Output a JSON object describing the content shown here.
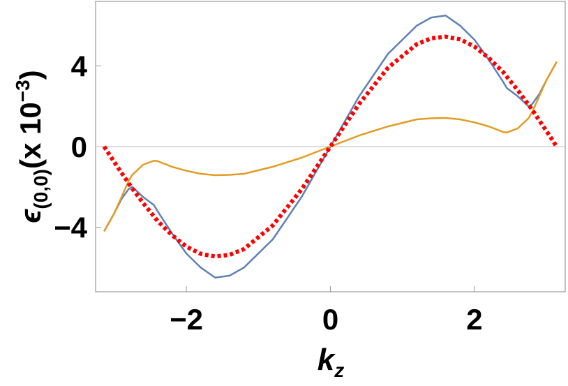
{
  "chart_data": {
    "type": "line",
    "x_label": [
      "k",
      "z"
    ],
    "y_label": [
      "ϵ",
      "(0,0)",
      "(x 10",
      "−3",
      ")"
    ],
    "x": [
      -3.1416,
      -3.0,
      -2.9,
      -2.8,
      -2.75,
      -2.6,
      -2.45,
      -2.4,
      -2.2,
      -2.0,
      -1.8,
      -1.6,
      -1.4,
      -1.2,
      -0.8,
      -0.4,
      0,
      0.4,
      0.8,
      1.2,
      1.4,
      1.6,
      1.8,
      2.0,
      2.2,
      2.4,
      2.45,
      2.6,
      2.75,
      2.8,
      2.9,
      3.0,
      3.1416
    ],
    "series": [
      {
        "color": "#5e81b5",
        "style": "solid",
        "values": [
          -4.2,
          -3.3,
          -2.6,
          -2.1,
          -2.0,
          -2.5,
          -2.9,
          -3.2,
          -4.3,
          -5.3,
          -6.0,
          -6.5,
          -6.4,
          -6.0,
          -4.6,
          -2.5,
          0,
          2.5,
          4.6,
          6.0,
          6.4,
          6.5,
          6.0,
          5.3,
          4.3,
          3.2,
          2.9,
          2.5,
          2.0,
          2.1,
          2.6,
          3.3,
          4.2
        ]
      },
      {
        "color": "#e19c24",
        "style": "solid",
        "values": [
          -4.2,
          -3.3,
          -2.5,
          -1.7,
          -1.4,
          -0.9,
          -0.7,
          -0.72,
          -1.0,
          -1.2,
          -1.35,
          -1.42,
          -1.4,
          -1.35,
          -1.0,
          -0.55,
          0,
          0.55,
          1.0,
          1.35,
          1.4,
          1.42,
          1.35,
          1.2,
          1.0,
          0.72,
          0.7,
          0.9,
          1.4,
          1.7,
          2.5,
          3.3,
          4.2
        ]
      },
      {
        "color": "#ff0000",
        "style": "dotted",
        "values": [
          0,
          -0.77,
          -1.3,
          -1.83,
          -2.08,
          -2.8,
          -3.46,
          -3.69,
          -4.39,
          -4.96,
          -5.32,
          -5.45,
          -5.37,
          -5.08,
          -3.91,
          -2.12,
          0,
          2.12,
          3.91,
          5.08,
          5.37,
          5.45,
          5.32,
          4.96,
          4.39,
          3.69,
          3.46,
          2.8,
          2.08,
          1.83,
          1.3,
          0.77,
          0
        ]
      }
    ],
    "xlim": [
      -3.26,
      3.26
    ],
    "ylim": [
      -7.2,
      7.2
    ],
    "xticks": [
      {
        "value": -2,
        "label": "−2"
      },
      0,
      2
    ],
    "yticks": [
      {
        "value": -4,
        "label": "−4"
      },
      0,
      4
    ]
  }
}
